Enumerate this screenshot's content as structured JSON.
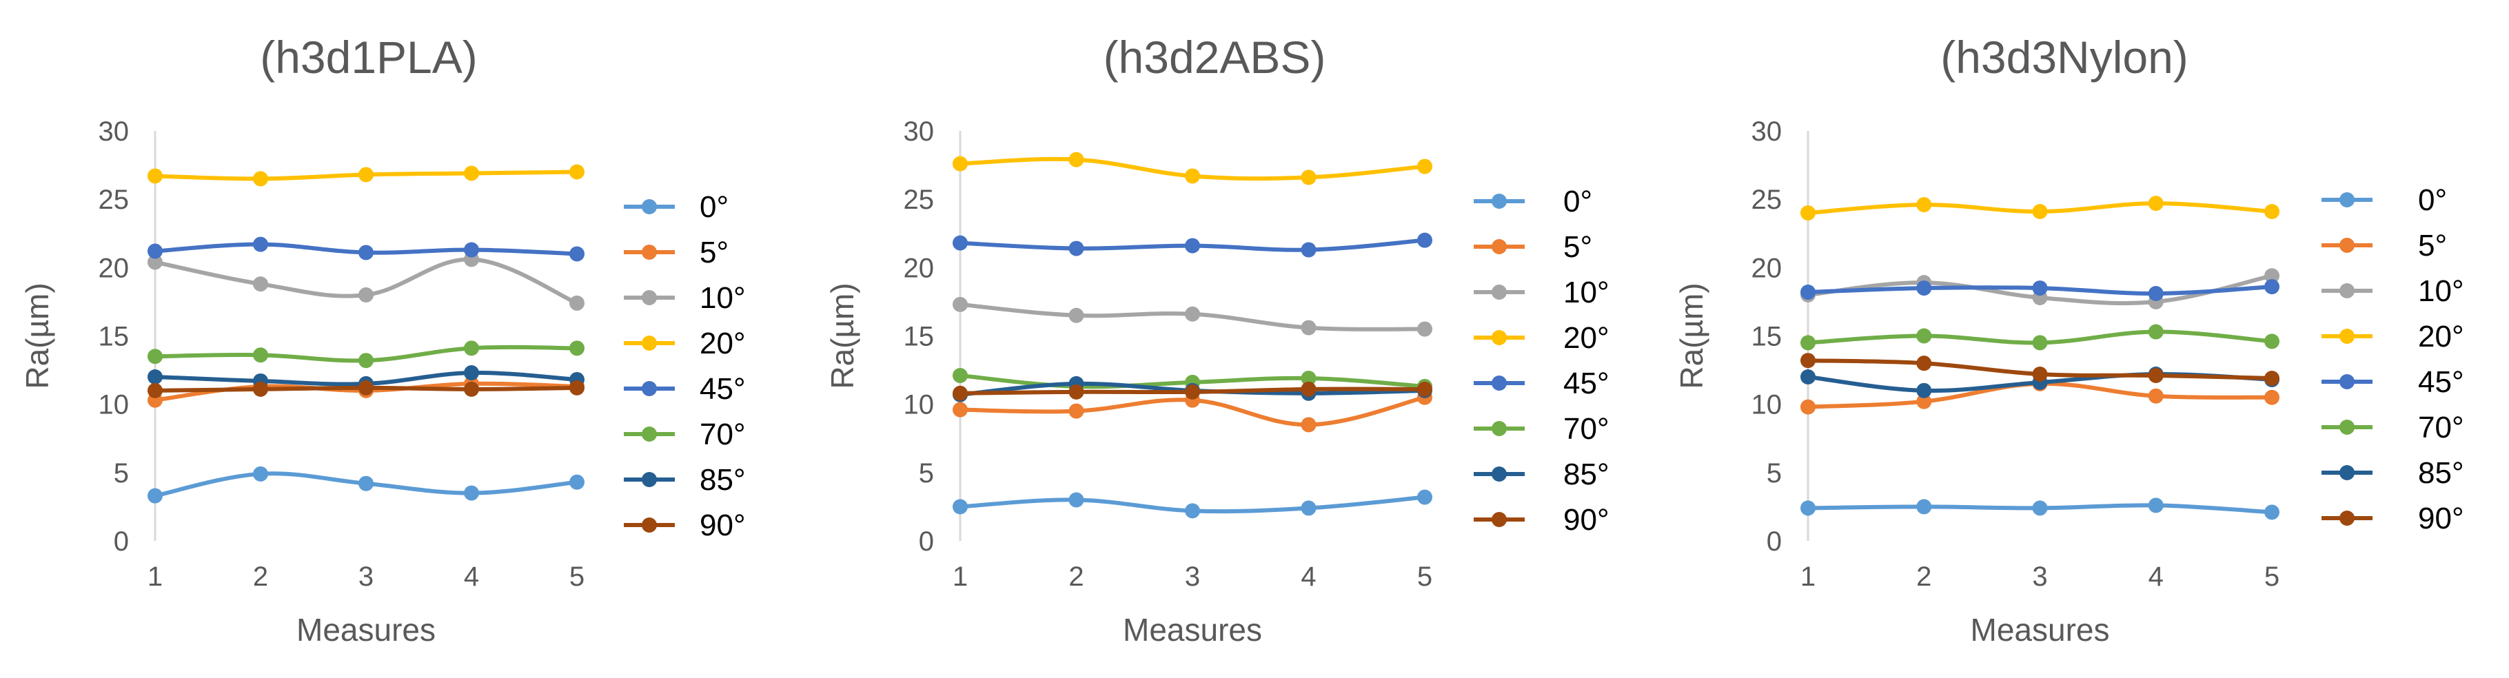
{
  "chart_data": [
    {
      "type": "line",
      "title": "(h3d1PLA)",
      "xlabel": "Measures",
      "ylabel": "Ra(µm)",
      "x": [
        1,
        2,
        3,
        4,
        5
      ],
      "ylim": [
        0,
        30
      ],
      "yticks": [
        0,
        5,
        10,
        15,
        20,
        25,
        30
      ],
      "grid": false,
      "legend": "right",
      "series": [
        {
          "name": "0°",
          "color": "#5b9bd5",
          "values": [
            3.3,
            4.9,
            4.2,
            3.5,
            4.3
          ]
        },
        {
          "name": "5°",
          "color": "#ed7d31",
          "values": [
            10.3,
            11.3,
            11.0,
            11.5,
            11.3
          ]
        },
        {
          "name": "10°",
          "color": "#a5a5a5",
          "values": [
            20.4,
            18.8,
            18.0,
            20.6,
            17.4
          ]
        },
        {
          "name": "20°",
          "color": "#ffc000",
          "values": [
            26.7,
            26.5,
            26.8,
            26.9,
            27.0
          ]
        },
        {
          "name": "45°",
          "color": "#4472c4",
          "values": [
            21.2,
            21.7,
            21.1,
            21.3,
            21.0
          ]
        },
        {
          "name": "70°",
          "color": "#70ad47",
          "values": [
            13.5,
            13.6,
            13.2,
            14.1,
            14.1
          ]
        },
        {
          "name": "85°",
          "color": "#255e91",
          "values": [
            12.0,
            11.7,
            11.5,
            12.3,
            11.8
          ]
        },
        {
          "name": "90°",
          "color": "#9e480e",
          "values": [
            11.0,
            11.1,
            11.2,
            11.1,
            11.2
          ]
        }
      ]
    },
    {
      "type": "line",
      "title": "(h3d2ABS)",
      "xlabel": "Measures",
      "ylabel": "Ra(µm)",
      "x": [
        1,
        2,
        3,
        4,
        5
      ],
      "ylim": [
        0,
        30
      ],
      "yticks": [
        0,
        5,
        10,
        15,
        20,
        25,
        30
      ],
      "grid": false,
      "legend": "right",
      "series": [
        {
          "name": "0°",
          "color": "#5b9bd5",
          "values": [
            2.5,
            3.0,
            2.2,
            2.4,
            3.2
          ]
        },
        {
          "name": "5°",
          "color": "#ed7d31",
          "values": [
            9.6,
            9.5,
            10.3,
            8.5,
            10.5
          ]
        },
        {
          "name": "10°",
          "color": "#a5a5a5",
          "values": [
            17.3,
            16.5,
            16.6,
            15.6,
            15.5
          ]
        },
        {
          "name": "20°",
          "color": "#ffc000",
          "values": [
            27.6,
            27.9,
            26.7,
            26.6,
            27.4
          ]
        },
        {
          "name": "45°",
          "color": "#4472c4",
          "values": [
            21.8,
            21.4,
            21.6,
            21.3,
            22.0
          ]
        },
        {
          "name": "70°",
          "color": "#70ad47",
          "values": [
            12.1,
            11.3,
            11.6,
            11.9,
            11.3
          ]
        },
        {
          "name": "85°",
          "color": "#255e91",
          "values": [
            10.7,
            11.5,
            11.0,
            10.8,
            11.0
          ]
        },
        {
          "name": "90°",
          "color": "#9e480e",
          "values": [
            10.8,
            10.9,
            10.9,
            11.1,
            11.1
          ]
        }
      ]
    },
    {
      "type": "line",
      "title": "(h3d3Nylon)",
      "xlabel": "Measures",
      "ylabel": "Ra(µm)",
      "x": [
        1,
        2,
        3,
        4,
        5
      ],
      "ylim": [
        0,
        30
      ],
      "yticks": [
        0,
        5,
        10,
        15,
        20,
        25,
        30
      ],
      "grid": false,
      "legend": "right",
      "series": [
        {
          "name": "0°",
          "color": "#5b9bd5",
          "values": [
            2.4,
            2.5,
            2.4,
            2.6,
            2.1
          ]
        },
        {
          "name": "5°",
          "color": "#ed7d31",
          "values": [
            9.8,
            10.2,
            11.5,
            10.6,
            10.5
          ]
        },
        {
          "name": "10°",
          "color": "#a5a5a5",
          "values": [
            18.0,
            18.9,
            17.8,
            17.5,
            19.4
          ]
        },
        {
          "name": "20°",
          "color": "#ffc000",
          "values": [
            24.0,
            24.6,
            24.1,
            24.7,
            24.1
          ]
        },
        {
          "name": "45°",
          "color": "#4472c4",
          "values": [
            18.2,
            18.5,
            18.5,
            18.1,
            18.6
          ]
        },
        {
          "name": "70°",
          "color": "#70ad47",
          "values": [
            14.5,
            15.0,
            14.5,
            15.3,
            14.6
          ]
        },
        {
          "name": "85°",
          "color": "#255e91",
          "values": [
            12.0,
            11.0,
            11.6,
            12.2,
            11.8
          ]
        },
        {
          "name": "90°",
          "color": "#9e480e",
          "values": [
            13.2,
            13.0,
            12.2,
            12.1,
            11.9
          ]
        }
      ]
    }
  ]
}
